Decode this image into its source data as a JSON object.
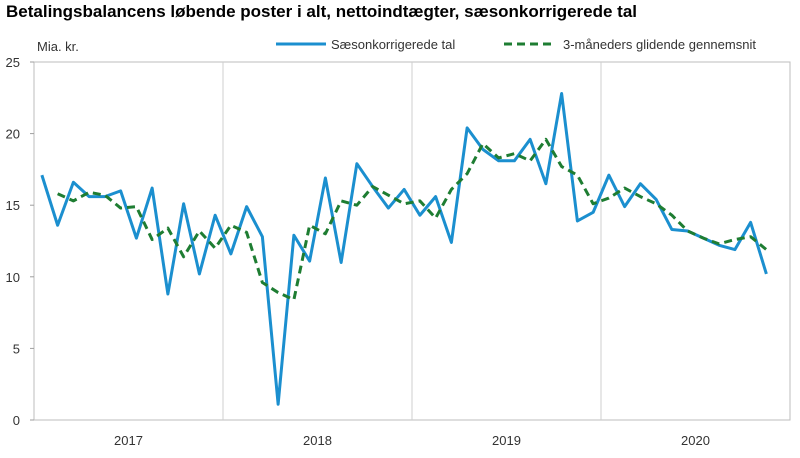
{
  "chart_data": {
    "type": "line",
    "title": "Betalingsbalancens løbende poster i alt, nettoindtægter, sæsonkorrigerede tal",
    "unit_label": "Mia. kr.",
    "ylim": [
      0,
      25
    ],
    "yticks": [
      0,
      5,
      10,
      15,
      20,
      25
    ],
    "grid": "vertical lines between years",
    "legend": "top",
    "years": [
      "2017",
      "2018",
      "2019",
      "2020"
    ],
    "x": [
      "2017-01",
      "2017-02",
      "2017-03",
      "2017-04",
      "2017-05",
      "2017-06",
      "2017-07",
      "2017-08",
      "2017-09",
      "2017-10",
      "2017-11",
      "2017-12",
      "2018-01",
      "2018-02",
      "2018-03",
      "2018-04",
      "2018-05",
      "2018-06",
      "2018-07",
      "2018-08",
      "2018-09",
      "2018-10",
      "2018-11",
      "2018-12",
      "2019-01",
      "2019-02",
      "2019-03",
      "2019-04",
      "2019-05",
      "2019-06",
      "2019-07",
      "2019-08",
      "2019-09",
      "2019-10",
      "2019-11",
      "2019-12",
      "2020-01",
      "2020-02",
      "2020-03",
      "2020-04",
      "2020-05",
      "2020-06",
      "2020-07",
      "2020-08",
      "2020-09",
      "2020-10",
      "2020-11",
      "2020-12"
    ],
    "series": [
      {
        "name": "Sæsonkorrigerede tal",
        "color": "#1b8fcf",
        "style": "solid",
        "values": [
          17.1,
          13.6,
          16.6,
          15.6,
          15.6,
          16.0,
          12.7,
          16.2,
          8.8,
          15.1,
          10.2,
          14.3,
          11.6,
          14.9,
          12.8,
          1.1,
          12.9,
          11.1,
          16.9,
          11.0,
          17.9,
          16.3,
          14.8,
          16.1,
          14.3,
          15.6,
          12.4,
          20.4,
          18.9,
          18.1,
          18.1,
          19.6,
          16.5,
          22.8,
          13.9,
          14.5,
          17.1,
          14.9,
          16.5,
          15.4,
          13.3,
          13.2,
          12.7,
          12.2,
          11.9,
          13.8,
          10.2,
          null
        ]
      },
      {
        "name": "3-måneders glidende gennemsnit",
        "color": "#1e7d32",
        "style": "dashed",
        "values": [
          null,
          15.8,
          15.3,
          15.9,
          15.7,
          14.8,
          14.9,
          12.6,
          13.4,
          11.4,
          13.2,
          12.0,
          13.6,
          13.1,
          9.6,
          8.9,
          8.4,
          13.6,
          13.0,
          15.3,
          15.0,
          16.3,
          15.7,
          15.1,
          15.3,
          14.1,
          16.1,
          17.2,
          19.3,
          18.3,
          18.6,
          18.1,
          19.6,
          17.7,
          17.1,
          15.1,
          15.5,
          16.2,
          15.6,
          15.1,
          14.3,
          13.2,
          12.7,
          12.3,
          12.6,
          12.8,
          11.9,
          null
        ]
      }
    ]
  }
}
